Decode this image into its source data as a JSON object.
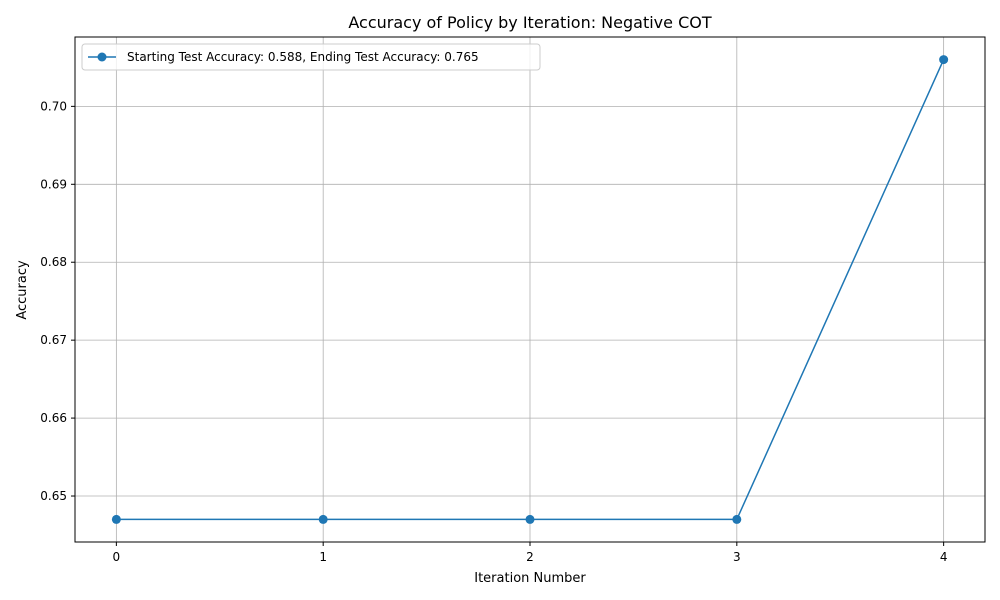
{
  "chart_data": {
    "type": "line",
    "title": "Accuracy of Policy by Iteration: Negative COT",
    "xlabel": "Iteration Number",
    "ylabel": "Accuracy",
    "x": [
      0,
      1,
      2,
      3,
      4
    ],
    "series": [
      {
        "name": "Starting Test Accuracy: 0.588, Ending Test Accuracy: 0.765",
        "values": [
          0.647,
          0.647,
          0.647,
          0.647,
          0.706
        ],
        "color": "#1f77b4",
        "marker": "circle"
      }
    ],
    "xlim": [
      -0.2,
      4.2
    ],
    "ylim": [
      0.6441,
      0.7089
    ],
    "xticks": [
      0,
      1,
      2,
      3,
      4
    ],
    "yticks": [
      0.65,
      0.66,
      0.67,
      0.68,
      0.69,
      0.7
    ],
    "ytick_labels": [
      "0.65",
      "0.66",
      "0.67",
      "0.68",
      "0.69",
      "0.70"
    ],
    "grid": true,
    "legend_position": "top-left"
  }
}
